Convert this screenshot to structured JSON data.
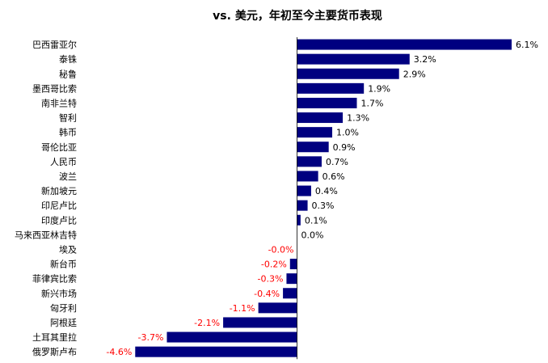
{
  "chart_data": {
    "type": "bar",
    "orientation": "horizontal",
    "title": "vs. 美元，年初至今主要货币表现",
    "categories": [
      "巴西雷亚尔",
      "泰铢",
      "秘鲁",
      "墨西哥比索",
      "南非兰特",
      "智利",
      "韩币",
      "哥伦比亚",
      "人民币",
      "波兰",
      "新加坡元",
      "印尼卢比",
      "印度卢比",
      "马来西亚林吉特",
      "埃及",
      "新台币",
      "菲律宾比索",
      "新兴市场",
      "匈牙利",
      "阿根廷",
      "土耳其里拉",
      "俄罗斯卢布"
    ],
    "values": [
      6.1,
      3.2,
      2.9,
      1.9,
      1.7,
      1.3,
      1.0,
      0.9,
      0.7,
      0.6,
      0.4,
      0.3,
      0.1,
      0.0,
      -0.0,
      -0.2,
      -0.3,
      -0.4,
      -1.1,
      -2.1,
      -3.7,
      -4.6
    ],
    "labels": [
      "6.1%",
      "3.2%",
      "2.9%",
      "1.9%",
      "1.7%",
      "1.3%",
      "1.0%",
      "0.9%",
      "0.7%",
      "0.6%",
      "0.4%",
      "0.3%",
      "0.1%",
      "0.0%",
      "-0.0%",
      "-0.2%",
      "-0.3%",
      "-0.4%",
      "-1.1%",
      "-2.1%",
      "-3.7%",
      "-4.6%"
    ],
    "xlim": [
      -4.6,
      6.1
    ],
    "grid": false,
    "legend": "none",
    "colors": {
      "bar": "#000080",
      "positive_label": "#000000",
      "negative_label": "#ff0000",
      "axis": "#000000"
    }
  }
}
